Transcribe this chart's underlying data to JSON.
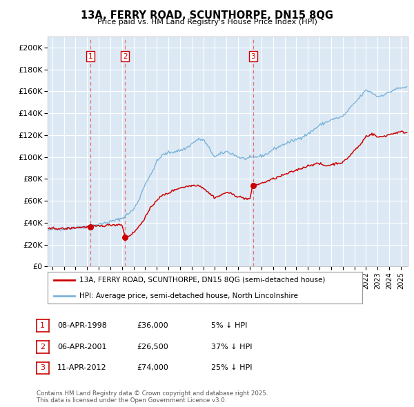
{
  "title": "13A, FERRY ROAD, SCUNTHORPE, DN15 8QG",
  "subtitle": "Price paid vs. HM Land Registry's House Price Index (HPI)",
  "ylabel_ticks": [
    "£0",
    "£20K",
    "£40K",
    "£60K",
    "£80K",
    "£100K",
    "£120K",
    "£140K",
    "£160K",
    "£180K",
    "£200K"
  ],
  "ytick_values": [
    0,
    20000,
    40000,
    60000,
    80000,
    100000,
    120000,
    140000,
    160000,
    180000,
    200000
  ],
  "ylim": [
    0,
    210000
  ],
  "xlim_start": 1994.6,
  "xlim_end": 2025.6,
  "sale_color": "#cc0000",
  "hpi_color": "#7ab3d9",
  "vline_color": "#e87070",
  "sale_dates": [
    1998.27,
    2001.27,
    2012.28
  ],
  "sale_prices": [
    36000,
    26500,
    74000
  ],
  "sale_labels": [
    "1",
    "2",
    "3"
  ],
  "legend_sale": "13A, FERRY ROAD, SCUNTHORPE, DN15 8QG (semi-detached house)",
  "legend_hpi": "HPI: Average price, semi-detached house, North Lincolnshire",
  "table_entries": [
    {
      "label": "1",
      "date": "08-APR-1998",
      "price": "£36,000",
      "pct": "5% ↓ HPI"
    },
    {
      "label": "2",
      "date": "06-APR-2001",
      "price": "£26,500",
      "pct": "37% ↓ HPI"
    },
    {
      "label": "3",
      "date": "11-APR-2012",
      "price": "£74,000",
      "pct": "25% ↓ HPI"
    }
  ],
  "footer": "Contains HM Land Registry data © Crown copyright and database right 2025.\nThis data is licensed under the Open Government Licence v3.0.",
  "plot_bg_color": "#dce9f5",
  "grid_color": "#ffffff",
  "fig_bg_color": "#ffffff"
}
